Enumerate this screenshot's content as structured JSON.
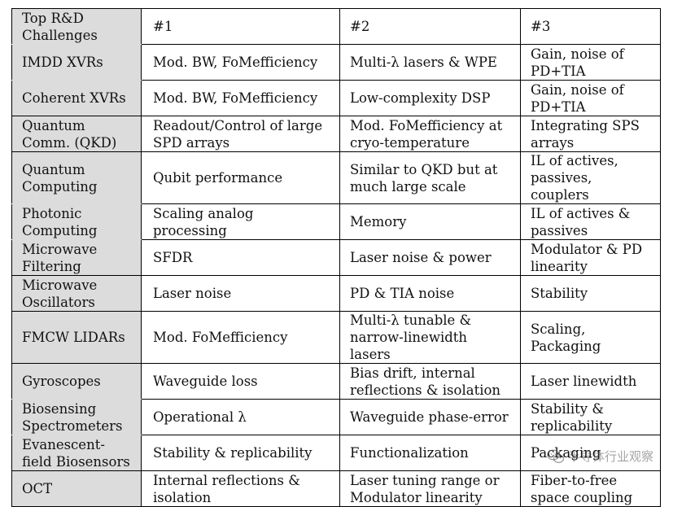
{
  "table": {
    "header": {
      "label": "Top R&D Challenges",
      "cols": [
        "#1",
        "#2",
        "#3"
      ]
    },
    "rows": [
      {
        "label": "IMDD XVRs",
        "c1": "Mod. BW, FoMefficiency",
        "c2": "Multi-λ lasers & WPE",
        "c3": "Gain, noise of PD+TIA"
      },
      {
        "label": "Coherent XVRs",
        "c1": "Mod. BW, FoMefficiency",
        "c2": "Low-complexity DSP",
        "c3": "Gain, noise of PD+TIA"
      },
      {
        "label": "Quantum Comm. (QKD)",
        "c1": "Readout/Control of large SPD arrays",
        "c2": "Mod. FoMefficiency at cryo-temperature",
        "c3": "Integrating SPS arrays"
      },
      {
        "label": "Quantum Computing",
        "c1": "Qubit performance",
        "c2": "Similar to QKD but at much large scale",
        "c3": "IL of actives, passives, couplers"
      },
      {
        "label": "Photonic Computing",
        "c1": "Scaling analog processing",
        "c2": "Memory",
        "c3": "IL of actives & passives"
      },
      {
        "label": "Microwave Filtering",
        "c1": "SFDR",
        "c2": "Laser noise & power",
        "c3": "Modulator & PD linearity"
      },
      {
        "label": "Microwave Oscillators",
        "c1": "Laser noise",
        "c2": "PD & TIA noise",
        "c3": "Stability"
      },
      {
        "label": "FMCW LIDARs",
        "c1": "Mod. FoMefficiency",
        "c2": "Multi-λ tunable & narrow-linewidth lasers",
        "c3": "Scaling, Packaging"
      },
      {
        "label": "Gyroscopes",
        "c1": "Waveguide loss",
        "c2": "Bias drift, internal reflections & isolation",
        "c3": "Laser linewidth"
      },
      {
        "label": "Biosensing Spectrometers",
        "c1": "Operational λ",
        "c2": "Waveguide phase-error",
        "c3": "Stability & replicability"
      },
      {
        "label": "Evanescent-field Biosensors",
        "c1": "Stability & replicability",
        "c2": "Functionalization",
        "c3": "Packaging"
      },
      {
        "label": "OCT",
        "c1": "Internal reflections & isolation",
        "c2": "Laser tuning range or Modulator linearity",
        "c3": "Fiber-to-free space coupling"
      }
    ]
  },
  "watermark": {
    "text": "半导体行业观察",
    "icon": "wechat-icon"
  }
}
